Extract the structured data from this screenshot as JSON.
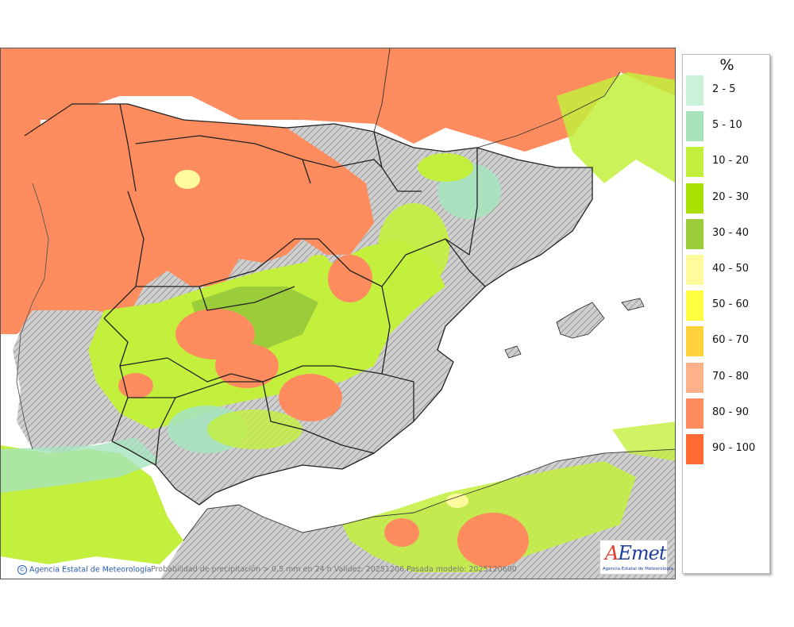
{
  "legend": {
    "unit": "%",
    "classes": [
      {
        "label": "2 - 5",
        "color": "#c9f2d8"
      },
      {
        "label": "5 - 10",
        "color": "#a6e3bd"
      },
      {
        "label": "10 - 20",
        "color": "#c3f03c"
      },
      {
        "label": "20 - 30",
        "color": "#a9e000"
      },
      {
        "label": "30 - 40",
        "color": "#9bcd3a"
      },
      {
        "label": "40 - 50",
        "color": "#fffa9b"
      },
      {
        "label": "50 - 60",
        "color": "#ffff40"
      },
      {
        "label": "60 - 70",
        "color": "#ffd23c"
      },
      {
        "label": "70 - 80",
        "color": "#ffb28a"
      },
      {
        "label": "80 - 90",
        "color": "#ff8c5e"
      },
      {
        "label": "90 - 100",
        "color": "#ff6a32"
      }
    ]
  },
  "footer": {
    "agency": "Agencia Estatal de Meteorología",
    "caption": "Probabilidad de precipitación > 0.5 mm en 24 h Validez: 20251206 Pasada modelo: 2025120600"
  },
  "logo": {
    "letter_a": "A",
    "letters_rest": "Emet",
    "subtitle": "Agencia Estatal de Meteorología"
  }
}
